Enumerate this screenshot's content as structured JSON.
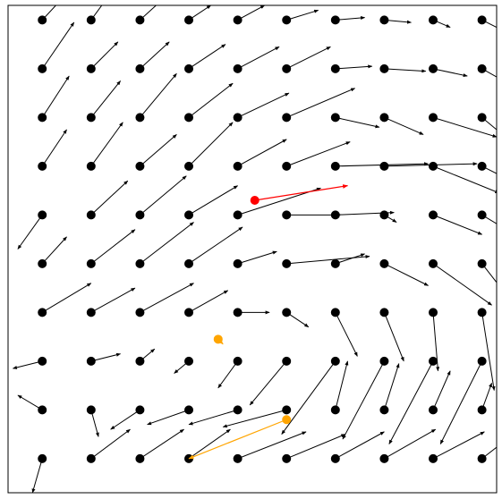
{
  "chart_data": {
    "type": "quiver",
    "title": "",
    "xlabel": "",
    "ylabel": "",
    "xlim": [
      -0.7,
      9.3
    ],
    "ylim": [
      -0.7,
      9.3
    ],
    "grid": false,
    "axes_visible": false,
    "grid_nodes": {
      "x": [
        0,
        1,
        2,
        3,
        4,
        5,
        6,
        7,
        8,
        9
      ],
      "y": [
        0,
        1,
        2,
        3,
        4,
        5,
        6,
        7,
        8,
        9
      ]
    },
    "vectors": [
      [
        [
          -0.2,
          -0.7
        ],
        [
          0.8,
          0.6
        ],
        [
          0.9,
          0.6
        ],
        [
          0.85,
          0.6
        ],
        [
          1.4,
          0.55
        ],
        [
          1.2,
          0.5
        ],
        [
          1.0,
          0.55
        ],
        [
          1.05,
          0.6
        ],
        [
          1.05,
          0.55
        ],
        [
          0.9,
          0.7
        ]
      ],
      [
        [
          -0.5,
          0.3
        ],
        [
          0.15,
          -0.55
        ],
        [
          -0.6,
          -0.4
        ],
        [
          -0.85,
          -0.3
        ],
        [
          -1.0,
          -0.3
        ],
        [
          -1.3,
          -0.35
        ],
        [
          0.25,
          1.0
        ],
        [
          0.3,
          0.95
        ],
        [
          0.35,
          0.8
        ],
        [
          0.2,
          0.55
        ]
      ],
      [
        [
          -0.6,
          -0.15
        ],
        [
          0.6,
          0.15
        ],
        [
          0.3,
          0.25
        ],
        [
          -0.3,
          -0.25
        ],
        [
          -0.4,
          -0.55
        ],
        [
          -0.75,
          -0.9
        ],
        [
          -1.1,
          -1.5
        ],
        [
          -0.85,
          -1.6
        ],
        [
          -0.9,
          -1.7
        ],
        [
          -0.85,
          -1.7
        ]
      ],
      [
        [
          1.0,
          0.6
        ],
        [
          0.9,
          0.5
        ],
        [
          1.1,
          0.6
        ],
        [
          0.8,
          0.45
        ],
        [
          0.65,
          0.0
        ],
        [
          0.45,
          -0.3
        ],
        [
          0.45,
          -0.9
        ],
        [
          0.4,
          -1.0
        ],
        [
          0.1,
          -1.2
        ],
        [
          0.25,
          -1.6
        ]
      ],
      [
        [
          0.5,
          0.55
        ],
        [
          0.9,
          0.7
        ],
        [
          1.1,
          0.85
        ],
        [
          1.1,
          0.75
        ],
        [
          0.8,
          0.25
        ],
        [
          1.7,
          0.15
        ],
        [
          0.6,
          0.2
        ],
        [
          0.9,
          -0.45
        ],
        [
          1.2,
          -0.85
        ],
        [
          0.7,
          -0.9
        ]
      ],
      [
        [
          -0.5,
          -0.7
        ],
        [
          0.75,
          0.7
        ],
        [
          0.95,
          0.8
        ],
        [
          1.0,
          0.6
        ],
        [
          1.7,
          0.55
        ],
        [
          1.1,
          0.0
        ],
        [
          1.2,
          0.05
        ],
        [
          0.25,
          -0.15
        ],
        [
          1.0,
          -0.4
        ],
        [
          0.5,
          -0.3
        ]
      ],
      [
        [
          0.5,
          0.75
        ],
        [
          0.65,
          0.9
        ],
        [
          0.75,
          0.65
        ],
        [
          0.9,
          0.9
        ],
        [
          1.0,
          0.55
        ],
        [
          1.3,
          0.5
        ],
        [
          1.9,
          0.05
        ],
        [
          1.9,
          0.05
        ],
        [
          1.35,
          -0.55
        ],
        [
          0.8,
          -0.4
        ]
      ],
      [
        [
          0.55,
          0.85
        ],
        [
          0.6,
          0.75
        ],
        [
          0.75,
          0.9
        ],
        [
          0.9,
          0.7
        ],
        [
          1.05,
          0.5
        ],
        [
          1.4,
          0.6
        ],
        [
          0.9,
          -0.2
        ],
        [
          0.8,
          -0.35
        ],
        [
          1.3,
          -0.4
        ],
        [
          0.9,
          -0.75
        ]
      ],
      [
        [
          0.65,
          0.95
        ],
        [
          0.55,
          0.55
        ],
        [
          0.6,
          0.55
        ],
        [
          0.75,
          0.5
        ],
        [
          0.85,
          0.45
        ],
        [
          0.9,
          0.45
        ],
        [
          0.75,
          0.05
        ],
        [
          0.85,
          -0.05
        ],
        [
          0.7,
          -0.15
        ],
        [
          0.8,
          -0.45
        ]
      ],
      [
        [
          0.65,
          0.7
        ],
        [
          0.4,
          0.55
        ],
        [
          0.55,
          0.5
        ],
        [
          0.45,
          0.3
        ],
        [
          0.55,
          0.3
        ],
        [
          0.65,
          0.2
        ],
        [
          0.6,
          0.05
        ],
        [
          0.55,
          -0.05
        ],
        [
          0.35,
          -0.15
        ],
        [
          0.4,
          -0.2
        ]
      ]
    ],
    "highlighted": [
      {
        "color": "#ff0000",
        "x": 4.35,
        "y": 5.3,
        "dx": 1.9,
        "dy": 0.3
      },
      {
        "color": "#ffa500",
        "x": 3.6,
        "y": 2.45,
        "dx": 0.1,
        "dy": -0.1
      },
      {
        "color": "#ffa500",
        "x": 5.0,
        "y": 0.8,
        "dx": -2.0,
        "dy": -0.8
      }
    ],
    "colors": {
      "arrow": "#000000",
      "node": "#000000",
      "frame": "#000000"
    }
  }
}
